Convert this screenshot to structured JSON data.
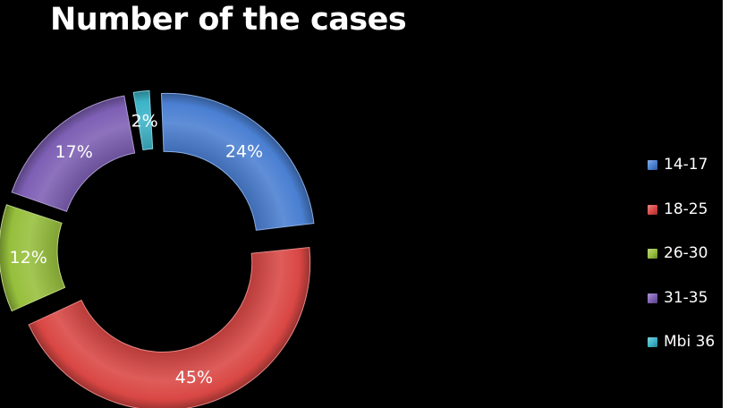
{
  "chart_data": {
    "type": "pie",
    "style": "exploded donut",
    "title": "Number of the cases",
    "slices": [
      {
        "label": "14-17",
        "value": 24,
        "display": "24%",
        "color": "#4a7fd2"
      },
      {
        "label": "18-25",
        "value": 45,
        "display": "45%",
        "color": "#d94744"
      },
      {
        "label": "26-30",
        "value": 12,
        "display": "12%",
        "color": "#96bf3c"
      },
      {
        "label": "31-35",
        "value": 17,
        "display": "17%",
        "color": "#7d5fb4"
      },
      {
        "label": "Mbi 36",
        "value": 2,
        "display": "2%",
        "color": "#3cb4c8"
      }
    ],
    "legend_position": "right"
  },
  "theme": {
    "background": "#000000",
    "text_color": "#ffffff"
  }
}
